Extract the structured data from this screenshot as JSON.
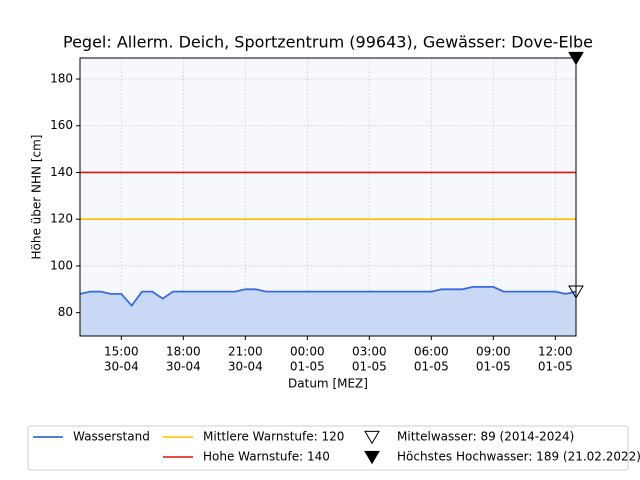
{
  "chart_data": {
    "type": "line",
    "title": "Pegel:  Allerm. Deich, Sportzentrum (99643), Gewässer:  Dove-Elbe",
    "xlabel": "Datum [MEZ]",
    "ylabel": "Höhe über NHN [cm]",
    "x": [
      "30-04 13:00",
      "30-04 13:30",
      "30-04 14:00",
      "30-04 14:30",
      "30-04 15:00",
      "30-04 15:30",
      "30-04 16:00",
      "30-04 16:30",
      "30-04 17:00",
      "30-04 17:30",
      "30-04 18:00",
      "30-04 18:30",
      "30-04 19:00",
      "30-04 19:30",
      "30-04 20:00",
      "30-04 20:30",
      "30-04 21:00",
      "30-04 21:30",
      "30-04 22:00",
      "30-04 22:30",
      "30-04 23:00",
      "30-04 23:30",
      "01-05 00:00",
      "01-05 00:30",
      "01-05 01:00",
      "01-05 01:30",
      "01-05 02:00",
      "01-05 02:30",
      "01-05 03:00",
      "01-05 03:30",
      "01-05 04:00",
      "01-05 04:30",
      "01-05 05:00",
      "01-05 05:30",
      "01-05 06:00",
      "01-05 06:30",
      "01-05 07:00",
      "01-05 07:30",
      "01-05 08:00",
      "01-05 08:30",
      "01-05 09:00",
      "01-05 09:30",
      "01-05 10:00",
      "01-05 10:30",
      "01-05 11:00",
      "01-05 11:30",
      "01-05 12:00",
      "01-05 12:30",
      "01-05 13:00"
    ],
    "xlim": [
      "30-04 13:00",
      "01-05 13:00"
    ],
    "xticks": [
      {
        "value": "30-04 15:00",
        "label": [
          "15:00",
          "30-04"
        ]
      },
      {
        "value": "30-04 18:00",
        "label": [
          "18:00",
          "30-04"
        ]
      },
      {
        "value": "30-04 21:00",
        "label": [
          "21:00",
          "30-04"
        ]
      },
      {
        "value": "01-05 00:00",
        "label": [
          "00:00",
          "01-05"
        ]
      },
      {
        "value": "01-05 03:00",
        "label": [
          "03:00",
          "01-05"
        ]
      },
      {
        "value": "01-05 06:00",
        "label": [
          "06:00",
          "01-05"
        ]
      },
      {
        "value": "01-05 09:00",
        "label": [
          "09:00",
          "01-05"
        ]
      },
      {
        "value": "01-05 12:00",
        "label": [
          "12:00",
          "01-05"
        ]
      }
    ],
    "ylim": [
      70,
      189
    ],
    "yticks": [
      80,
      100,
      120,
      140,
      160,
      180
    ],
    "grid": true,
    "series": [
      {
        "name": "Wasserstand",
        "color": "#3a6bd9",
        "fill": "#c9d8f5",
        "values": [
          88,
          89,
          89,
          88,
          88,
          83,
          89,
          89,
          86,
          89,
          89,
          89,
          89,
          89,
          89,
          89,
          90,
          90,
          89,
          89,
          89,
          89,
          89,
          89,
          89,
          89,
          89,
          89,
          89,
          89,
          89,
          89,
          89,
          89,
          89,
          90,
          90,
          90,
          91,
          91,
          91,
          89,
          89,
          89,
          89,
          89,
          89,
          88,
          89
        ]
      }
    ],
    "hlines": [
      {
        "name": "Mittlere Warnstufe: 120",
        "color": "#ffbf00",
        "value": 120
      },
      {
        "name": "Hohe Warnstufe: 140",
        "color": "#e01010",
        "value": 140
      }
    ],
    "markers": [
      {
        "name": "Mittelwasser: 89 (2014-2024)",
        "value": 89,
        "filled": false
      },
      {
        "name": "Höchstes Hochwasser: 189 (21.02.2022)",
        "value": 189,
        "filled": true
      }
    ]
  }
}
